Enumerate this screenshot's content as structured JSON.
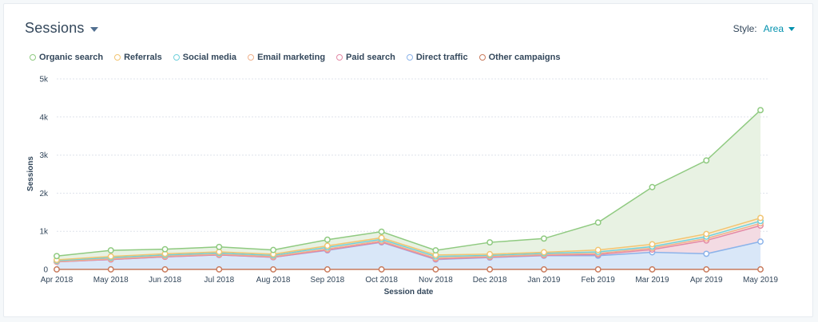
{
  "header": {
    "title": "Sessions",
    "style_label": "Style:",
    "style_value": "Area"
  },
  "chart_data": {
    "type": "area",
    "stacked": true,
    "xlabel": "Session date",
    "ylabel": "Sessions",
    "ylim": [
      0,
      5000
    ],
    "yticks": [
      0,
      1000,
      2000,
      3000,
      4000,
      5000
    ],
    "ytick_labels": [
      "0",
      "1k",
      "2k",
      "3k",
      "4k",
      "5k"
    ],
    "grid": true,
    "legend": "top-left",
    "categories": [
      "Apr 2018",
      "May 2018",
      "Jun 2018",
      "Jul 2018",
      "Aug 2018",
      "Sep 2018",
      "Oct 2018",
      "Nov 2018",
      "Dec 2018",
      "Jan 2019",
      "Feb 2019",
      "Mar 2019",
      "Apr 2019",
      "May 2019"
    ],
    "series": [
      {
        "name": "Organic search",
        "color": "#8fca80",
        "fill": "#e8f2e3",
        "values": [
          100,
          160,
          120,
          130,
          110,
          160,
          160,
          120,
          310,
          360,
          720,
          1500,
          1930,
          2830
        ]
      },
      {
        "name": "Referrals",
        "color": "#f2c572",
        "fill": "#f9ecd3",
        "values": [
          20,
          30,
          30,
          30,
          30,
          40,
          40,
          40,
          30,
          30,
          50,
          60,
          70,
          80
        ]
      },
      {
        "name": "Social media",
        "color": "#6fd1dc",
        "fill": "#dff2f4",
        "values": [
          20,
          30,
          30,
          30,
          30,
          40,
          40,
          40,
          30,
          30,
          40,
          40,
          50,
          60
        ]
      },
      {
        "name": "Email marketing",
        "color": "#f0b18c",
        "fill": "#f9e2d6",
        "values": [
          10,
          20,
          20,
          20,
          20,
          30,
          30,
          30,
          20,
          20,
          30,
          40,
          50,
          60
        ]
      },
      {
        "name": "Paid search",
        "color": "#e389a6",
        "fill": "#f3dbe3",
        "values": [
          0,
          0,
          0,
          0,
          0,
          10,
          10,
          10,
          10,
          10,
          30,
          70,
          350,
          420
        ]
      },
      {
        "name": "Direct traffic",
        "color": "#8bb3ea",
        "fill": "#d9e7f8",
        "values": [
          200,
          260,
          330,
          380,
          320,
          500,
          710,
          260,
          310,
          360,
          360,
          450,
          410,
          730
        ]
      },
      {
        "name": "Other campaigns",
        "color": "#c87a5c",
        "fill": "#f3e3dc",
        "values": [
          0,
          0,
          0,
          0,
          0,
          0,
          0,
          0,
          0,
          0,
          0,
          0,
          0,
          0
        ]
      }
    ]
  }
}
